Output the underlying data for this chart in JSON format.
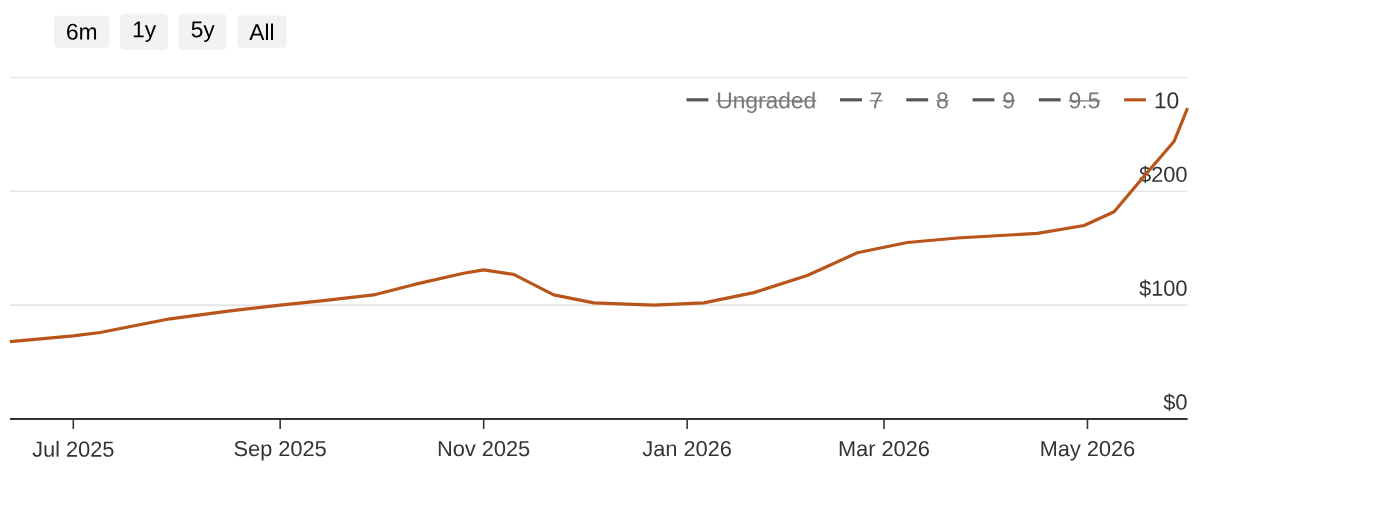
{
  "chart_data": {
    "type": "line",
    "x": [
      "2025-06-12",
      "2025-07-01",
      "2025-07-09",
      "2025-07-30",
      "2025-08-17",
      "2025-09-01",
      "2025-09-14",
      "2025-09-29",
      "2025-10-11",
      "2025-10-26",
      "2025-11-01",
      "2025-11-10",
      "2025-11-22",
      "2025-12-04",
      "2025-12-22",
      "2026-01-06",
      "2026-01-21",
      "2026-02-06",
      "2026-02-21",
      "2026-03-08",
      "2026-03-23",
      "2026-04-16",
      "2026-04-30",
      "2026-05-09",
      "2026-05-17",
      "2026-05-27",
      "2026-05-31"
    ],
    "series": [
      {
        "name": "Ungraded",
        "color": "#555555",
        "values": [
          null,
          null,
          null,
          null,
          null,
          null,
          null,
          null,
          null,
          null,
          null,
          null,
          null,
          null,
          null,
          null,
          null,
          null,
          null,
          null,
          null,
          null,
          null,
          null,
          null,
          null,
          null
        ]
      },
      {
        "name": "7",
        "color": "#555555",
        "values": [
          null,
          null,
          null,
          null,
          null,
          null,
          null,
          null,
          null,
          null,
          null,
          null,
          null,
          null,
          null,
          null,
          null,
          null,
          null,
          null,
          null,
          null,
          null,
          null,
          null,
          null,
          null
        ]
      },
      {
        "name": "8",
        "color": "#555555",
        "values": [
          null,
          null,
          null,
          null,
          null,
          null,
          null,
          null,
          null,
          null,
          null,
          null,
          null,
          null,
          null,
          null,
          null,
          null,
          null,
          null,
          null,
          null,
          null,
          null,
          null,
          null,
          null
        ]
      },
      {
        "name": "9",
        "color": "#555555",
        "values": [
          null,
          null,
          null,
          null,
          null,
          null,
          null,
          null,
          null,
          null,
          null,
          null,
          null,
          null,
          null,
          null,
          null,
          null,
          null,
          null,
          null,
          null,
          null,
          null,
          null,
          null,
          null
        ]
      },
      {
        "name": "9.5",
        "color": "#555555",
        "values": [
          null,
          null,
          null,
          null,
          null,
          null,
          null,
          null,
          null,
          null,
          null,
          null,
          null,
          null,
          null,
          null,
          null,
          null,
          null,
          null,
          null,
          null,
          null,
          null,
          null,
          null,
          null
        ]
      },
      {
        "name": "10",
        "color": "#b9541a",
        "values": [
          68,
          73,
          76,
          88,
          95,
          100,
          104,
          109,
          118,
          128,
          131,
          127,
          109,
          102,
          100,
          102,
          111,
          126,
          146,
          155,
          159,
          163,
          170,
          182,
          210,
          244,
          273
        ]
      }
    ],
    "xlim": [
      "2025-06-12",
      "2026-05-31"
    ],
    "xticks": [
      {
        "value": "2025-07-01",
        "label": "Jul 2025"
      },
      {
        "value": "2025-09-01",
        "label": "Sep 2025"
      },
      {
        "value": "2025-11-01",
        "label": "Nov 2025"
      },
      {
        "value": "2026-01-01",
        "label": "Jan 2026"
      },
      {
        "value": "2026-03-01",
        "label": "Mar 2026"
      },
      {
        "value": "2026-05-01",
        "label": "May 2026"
      }
    ],
    "ylim": [
      0,
      300
    ],
    "yticks": [
      {
        "value": 0,
        "label": "$0"
      },
      {
        "value": 100,
        "label": "$100"
      },
      {
        "value": 200,
        "label": "$200"
      },
      {
        "value": 300,
        "label": null
      }
    ],
    "grid": "y",
    "legend": "top right",
    "line_style": "solid",
    "marker": "none",
    "annotations": [
      "6m",
      "1y",
      "5y",
      "All"
    ]
  }
}
